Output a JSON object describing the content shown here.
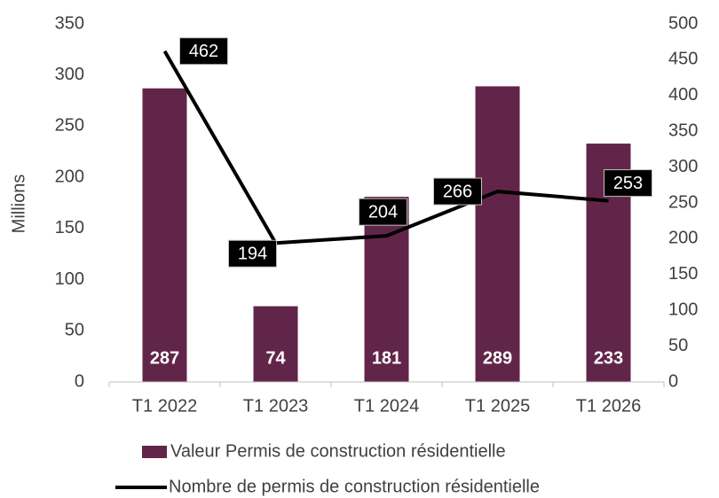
{
  "chart_data": {
    "type": "bar_line",
    "y_axis_label": "Millions",
    "categories": [
      "T1 2022",
      "T1 2023",
      "T1 2024",
      "T1 2025",
      "T1 2026"
    ],
    "series": [
      {
        "name": "Valeur Permis de construction résidentielle",
        "type": "bar",
        "color": "#62254a",
        "values": [
          287,
          74,
          181,
          289,
          233
        ]
      },
      {
        "name": "Nombre de permis de construction résidentielle",
        "type": "line",
        "color": "#000000",
        "axis": "y2",
        "values": [
          462,
          194,
          204,
          266,
          253
        ]
      }
    ],
    "ylim": [
      0,
      350
    ],
    "yticks": [
      0,
      50,
      100,
      150,
      200,
      250,
      300,
      350
    ],
    "y2lim": [
      0,
      500
    ],
    "y2ticks": [
      0,
      50,
      100,
      150,
      200,
      250,
      300,
      350,
      400,
      450,
      500
    ],
    "legend": "bottom"
  }
}
